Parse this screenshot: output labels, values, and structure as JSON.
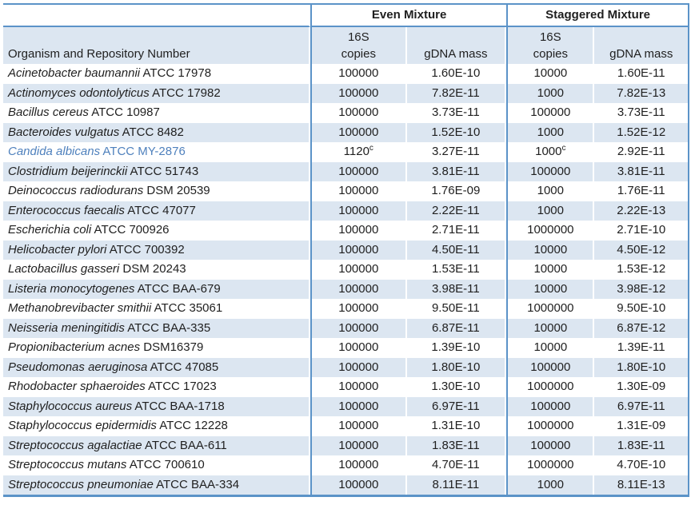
{
  "header": {
    "even_label": "Even Mixture",
    "staggered_label": "Staggered Mixture",
    "organism_label": "Organism and Repository Number",
    "copies_line1": "16S",
    "copies_line2": "copies",
    "gdna_label": "gDNA mass"
  },
  "colors": {
    "border_blue": "#5b93c8",
    "stripe_blue": "#dce6f1",
    "highlight_text": "#4f81bd",
    "text": "#1f1f1f"
  },
  "rows": [
    {
      "name": "Acinetobacter baumannii",
      "repo": "ATCC 17978",
      "even_copies": "100000",
      "even_sup": "",
      "even_mass": "1.60E-10",
      "stag_copies": "10000",
      "stag_sup": "",
      "stag_mass": "1.60E-11",
      "highlight": false
    },
    {
      "name": "Actinomyces odontolyticus",
      "repo": "ATCC 17982",
      "even_copies": "100000",
      "even_sup": "",
      "even_mass": "7.82E-11",
      "stag_copies": "1000",
      "stag_sup": "",
      "stag_mass": "7.82E-13",
      "highlight": false
    },
    {
      "name": "Bacillus cereus",
      "repo": "ATCC 10987",
      "even_copies": "100000",
      "even_sup": "",
      "even_mass": "3.73E-11",
      "stag_copies": "100000",
      "stag_sup": "",
      "stag_mass": "3.73E-11",
      "highlight": false
    },
    {
      "name": "Bacteroides vulgatus",
      "repo": "ATCC 8482",
      "even_copies": "100000",
      "even_sup": "",
      "even_mass": "1.52E-10",
      "stag_copies": "1000",
      "stag_sup": "",
      "stag_mass": "1.52E-12",
      "highlight": false
    },
    {
      "name": "Candida albicans",
      "repo": "ATCC MY-2876",
      "even_copies": "1120",
      "even_sup": "c",
      "even_mass": "3.27E-11",
      "stag_copies": "1000",
      "stag_sup": "c",
      "stag_mass": "2.92E-11",
      "highlight": true
    },
    {
      "name": "Clostridium beijerinckii",
      "repo": "ATCC 51743",
      "even_copies": "100000",
      "even_sup": "",
      "even_mass": "3.81E-11",
      "stag_copies": "100000",
      "stag_sup": "",
      "stag_mass": "3.81E-11",
      "highlight": false
    },
    {
      "name": "Deinococcus radiodurans",
      "repo": "DSM 20539",
      "even_copies": "100000",
      "even_sup": "",
      "even_mass": "1.76E-09",
      "stag_copies": "1000",
      "stag_sup": "",
      "stag_mass": "1.76E-11",
      "highlight": false
    },
    {
      "name": "Enterococcus faecalis",
      "repo": "ATCC 47077",
      "even_copies": "100000",
      "even_sup": "",
      "even_mass": "2.22E-11",
      "stag_copies": "1000",
      "stag_sup": "",
      "stag_mass": "2.22E-13",
      "highlight": false
    },
    {
      "name": "Escherichia coli",
      "repo": "ATCC 700926",
      "even_copies": "100000",
      "even_sup": "",
      "even_mass": "2.71E-11",
      "stag_copies": "1000000",
      "stag_sup": "",
      "stag_mass": "2.71E-10",
      "highlight": false
    },
    {
      "name": "Helicobacter pylori",
      "repo": "ATCC 700392",
      "even_copies": "100000",
      "even_sup": "",
      "even_mass": "4.50E-11",
      "stag_copies": "10000",
      "stag_sup": "",
      "stag_mass": "4.50E-12",
      "highlight": false
    },
    {
      "name": "Lactobacillus gasseri",
      "repo": "DSM 20243",
      "even_copies": "100000",
      "even_sup": "",
      "even_mass": "1.53E-11",
      "stag_copies": "10000",
      "stag_sup": "",
      "stag_mass": "1.53E-12",
      "highlight": false
    },
    {
      "name": "Listeria monocytogenes",
      "repo": "ATCC BAA-679",
      "even_copies": "100000",
      "even_sup": "",
      "even_mass": "3.98E-11",
      "stag_copies": "10000",
      "stag_sup": "",
      "stag_mass": "3.98E-12",
      "highlight": false
    },
    {
      "name": "Methanobrevibacter smithii",
      "repo": "ATCC 35061",
      "even_copies": "100000",
      "even_sup": "",
      "even_mass": "9.50E-11",
      "stag_copies": "1000000",
      "stag_sup": "",
      "stag_mass": "9.50E-10",
      "highlight": false
    },
    {
      "name": "Neisseria meningitidis",
      "repo": "ATCC BAA-335",
      "even_copies": "100000",
      "even_sup": "",
      "even_mass": "6.87E-11",
      "stag_copies": "10000",
      "stag_sup": "",
      "stag_mass": "6.87E-12",
      "highlight": false
    },
    {
      "name": "Propionibacterium acnes",
      "repo": "DSM16379",
      "even_copies": "100000",
      "even_sup": "",
      "even_mass": "1.39E-10",
      "stag_copies": "10000",
      "stag_sup": "",
      "stag_mass": "1.39E-11",
      "highlight": false
    },
    {
      "name": "Pseudomonas aeruginosa",
      "repo": "ATCC 47085",
      "even_copies": "100000",
      "even_sup": "",
      "even_mass": "1.80E-10",
      "stag_copies": "100000",
      "stag_sup": "",
      "stag_mass": "1.80E-10",
      "highlight": false
    },
    {
      "name": "Rhodobacter sphaeroides",
      "repo": "ATCC 17023",
      "even_copies": "100000",
      "even_sup": "",
      "even_mass": "1.30E-10",
      "stag_copies": "1000000",
      "stag_sup": "",
      "stag_mass": "1.30E-09",
      "highlight": false
    },
    {
      "name": "Staphylococcus aureus",
      "repo": "ATCC BAA-1718",
      "even_copies": "100000",
      "even_sup": "",
      "even_mass": "6.97E-11",
      "stag_copies": "100000",
      "stag_sup": "",
      "stag_mass": "6.97E-11",
      "highlight": false
    },
    {
      "name": "Staphylococcus epidermidis",
      "repo": "ATCC 12228",
      "even_copies": "100000",
      "even_sup": "",
      "even_mass": "1.31E-10",
      "stag_copies": "1000000",
      "stag_sup": "",
      "stag_mass": "1.31E-09",
      "highlight": false
    },
    {
      "name": "Streptococcus agalactiae",
      "repo": "ATCC BAA-611",
      "even_copies": "100000",
      "even_sup": "",
      "even_mass": "1.83E-11",
      "stag_copies": "100000",
      "stag_sup": "",
      "stag_mass": "1.83E-11",
      "highlight": false
    },
    {
      "name": "Streptococcus mutans",
      "repo": "ATCC 700610",
      "even_copies": "100000",
      "even_sup": "",
      "even_mass": "4.70E-11",
      "stag_copies": "1000000",
      "stag_sup": "",
      "stag_mass": "4.70E-10",
      "highlight": false
    },
    {
      "name": "Streptococcus pneumoniae",
      "repo": "ATCC BAA-334",
      "even_copies": "100000",
      "even_sup": "",
      "even_mass": "8.11E-11",
      "stag_copies": "1000",
      "stag_sup": "",
      "stag_mass": "8.11E-13",
      "highlight": false
    }
  ]
}
